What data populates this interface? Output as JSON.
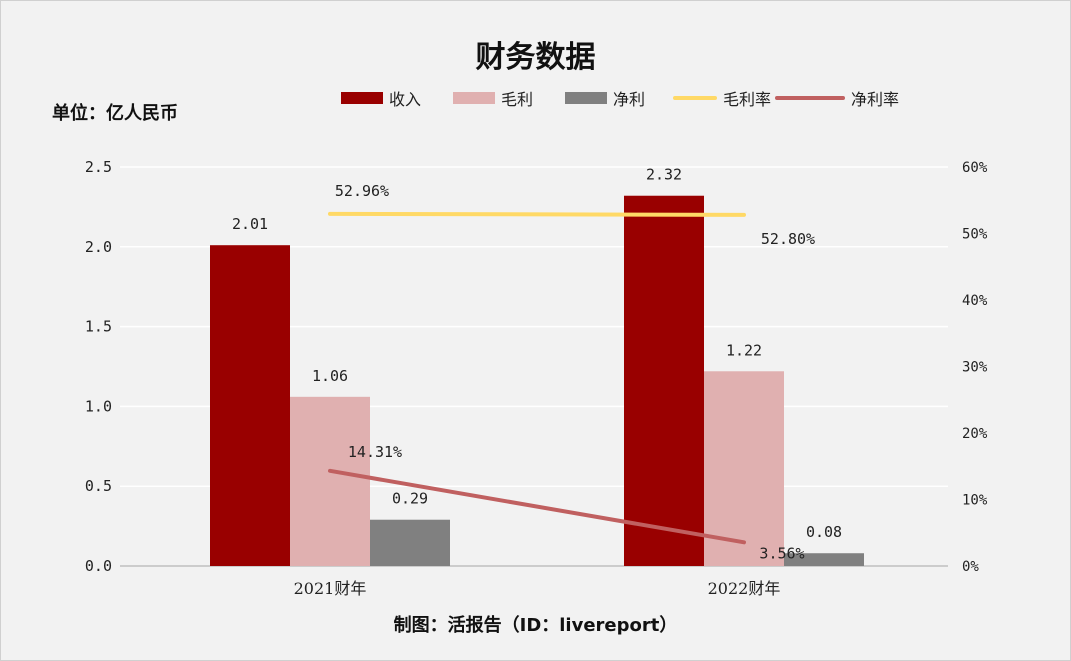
{
  "title": "财务数据",
  "unit_label": "单位：亿人民币",
  "credit": "制图：活报告（ID：livereport）",
  "chart_data": {
    "type": "bar+line",
    "categories": [
      "2021财年",
      "2022财年"
    ],
    "series": [
      {
        "name": "收入",
        "type": "bar",
        "axis": "left",
        "color": "#990000",
        "values": [
          2.01,
          2.32
        ],
        "labels": [
          "2.01",
          "2.32"
        ]
      },
      {
        "name": "毛利",
        "type": "bar",
        "axis": "left",
        "color": "#e0b0b0",
        "values": [
          1.06,
          1.22
        ],
        "labels": [
          "1.06",
          "1.22"
        ]
      },
      {
        "name": "净利",
        "type": "bar",
        "axis": "left",
        "color": "#808080",
        "values": [
          0.29,
          0.08
        ],
        "labels": [
          "0.29",
          "0.08"
        ]
      },
      {
        "name": "毛利率",
        "type": "line",
        "axis": "right",
        "color": "#ffd966",
        "values": [
          52.96,
          52.8
        ],
        "labels": [
          "52.96%",
          "52.80%"
        ]
      },
      {
        "name": "净利率",
        "type": "line",
        "axis": "right",
        "color": "#c06060",
        "values": [
          14.31,
          3.56
        ],
        "labels": [
          "14.31%",
          "3.56%"
        ]
      }
    ],
    "y_left": {
      "range": [
        0,
        2.5
      ],
      "ticks": [
        "0.0",
        "0.5",
        "1.0",
        "1.5",
        "2.0",
        "2.5"
      ]
    },
    "y_right": {
      "range": [
        0,
        60
      ],
      "ticks": [
        "0%",
        "10%",
        "20%",
        "30%",
        "40%",
        "50%",
        "60%"
      ]
    },
    "grid": true,
    "legend": "top"
  }
}
